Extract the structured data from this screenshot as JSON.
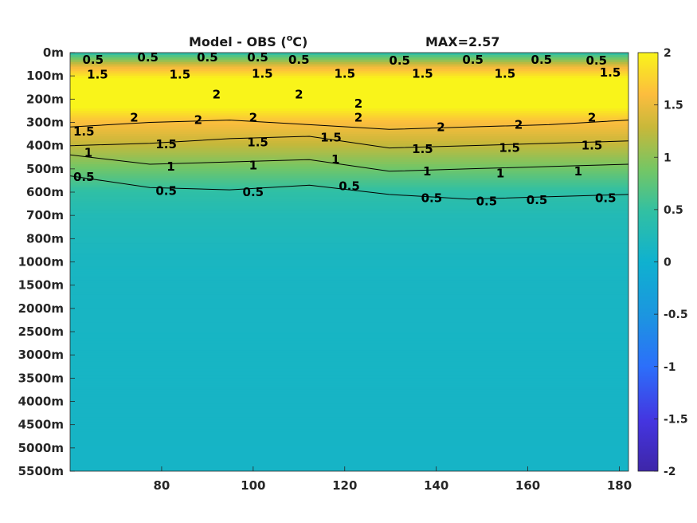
{
  "chart_data": {
    "type": "heatmap",
    "title": "Model - OBS (",
    "title_unit": "o",
    "title_suffix": "C)",
    "max_label": "MAX=2.57",
    "x": {
      "range": [
        60,
        182
      ],
      "ticks": [
        80,
        100,
        120,
        140,
        160,
        180
      ],
      "tick_labels": [
        "80",
        "100",
        "120",
        "140",
        "160",
        "180"
      ]
    },
    "y": {
      "tick_labels": [
        "0m",
        "100m",
        "200m",
        "300m",
        "400m",
        "500m",
        "600m",
        "700m",
        "800m",
        "1000m",
        "1500m",
        "2000m",
        "2500m",
        "3000m",
        "3500m",
        "4000m",
        "4500m",
        "5000m",
        "5500m"
      ]
    },
    "colorbar": {
      "range": [
        -2,
        2
      ],
      "ticks": [
        2,
        1.5,
        1,
        0.5,
        0,
        -0.5,
        -1,
        -1.5,
        -2
      ],
      "tick_labels": [
        "2",
        "1.5",
        "1",
        "0.5",
        "0",
        "-0.5",
        "-1",
        "-1.5",
        "-2"
      ],
      "colors": [
        "#3e26a8",
        "#4435e0",
        "#2c6ffa",
        "#1c95e0",
        "#0fb1cf",
        "#31c0a3",
        "#74c665",
        "#c7b83a",
        "#fcbd3e",
        "#f9f41a"
      ]
    },
    "depth_profile": [
      {
        "level": 0,
        "value": 0.4
      },
      {
        "level": 0.6,
        "value": 1.5
      },
      {
        "level": 1.2,
        "value": 2.1
      },
      {
        "level": 2.2,
        "value": 2.1
      },
      {
        "level": 3,
        "value": 1.6
      },
      {
        "level": 4,
        "value": 1.25
      },
      {
        "level": 5,
        "value": 0.85
      },
      {
        "level": 6,
        "value": 0.45
      },
      {
        "level": 7,
        "value": 0.28
      },
      {
        "level": 9,
        "value": 0.15
      },
      {
        "level": 12,
        "value": 0.12
      },
      {
        "level": 18,
        "value": 0.1
      }
    ],
    "contours": [
      {
        "value": 2,
        "depth_level": [
          3.2,
          3.0,
          2.9,
          3.1,
          3.3,
          3.2,
          3.1,
          2.9
        ]
      },
      {
        "value": 1.5,
        "depth_level": [
          4.0,
          3.9,
          3.7,
          3.6,
          4.1,
          4.0,
          3.9,
          3.8
        ]
      },
      {
        "value": 1,
        "depth_level": [
          4.4,
          4.8,
          4.7,
          4.6,
          5.1,
          5.0,
          4.9,
          4.8
        ]
      },
      {
        "value": 0.5,
        "depth_level": [
          5.3,
          5.8,
          5.9,
          5.7,
          6.1,
          6.3,
          6.2,
          6.1
        ]
      }
    ],
    "contour_labels": [
      {
        "text": "0.5",
        "x": 65,
        "level": 0.3
      },
      {
        "text": "0.5",
        "x": 77,
        "level": 0.2
      },
      {
        "text": "0.5",
        "x": 90,
        "level": 0.2
      },
      {
        "text": "0.5",
        "x": 101,
        "level": 0.2
      },
      {
        "text": "0.5",
        "x": 110,
        "level": 0.3
      },
      {
        "text": "0.5",
        "x": 132,
        "level": 0.35
      },
      {
        "text": "0.5",
        "x": 148,
        "level": 0.3
      },
      {
        "text": "0.5",
        "x": 163,
        "level": 0.3
      },
      {
        "text": "0.5",
        "x": 175,
        "level": 0.35
      },
      {
        "text": "1.5",
        "x": 66,
        "level": 0.95
      },
      {
        "text": "1.5",
        "x": 84,
        "level": 0.95
      },
      {
        "text": "1.5",
        "x": 102,
        "level": 0.9
      },
      {
        "text": "1.5",
        "x": 120,
        "level": 0.9
      },
      {
        "text": "1.5",
        "x": 137,
        "level": 0.9
      },
      {
        "text": "1.5",
        "x": 155,
        "level": 0.9
      },
      {
        "text": "1.5",
        "x": 178,
        "level": 0.85
      },
      {
        "text": "2",
        "x": 92,
        "level": 1.8
      },
      {
        "text": "2",
        "x": 110,
        "level": 1.8
      },
      {
        "text": "2",
        "x": 123,
        "level": 2.2
      },
      {
        "text": "2",
        "x": 74,
        "level": 2.8
      },
      {
        "text": "2",
        "x": 88,
        "level": 2.9
      },
      {
        "text": "2",
        "x": 100,
        "level": 2.8
      },
      {
        "text": "2",
        "x": 123,
        "level": 2.8
      },
      {
        "text": "2",
        "x": 141,
        "level": 3.2
      },
      {
        "text": "2",
        "x": 158,
        "level": 3.1
      },
      {
        "text": "2",
        "x": 174,
        "level": 2.8
      },
      {
        "text": "1.5",
        "x": 63,
        "level": 3.4
      },
      {
        "text": "1.5",
        "x": 81,
        "level": 3.95
      },
      {
        "text": "1.5",
        "x": 101,
        "level": 3.85
      },
      {
        "text": "1.5",
        "x": 117,
        "level": 3.65
      },
      {
        "text": "1.5",
        "x": 137,
        "level": 4.15
      },
      {
        "text": "1.5",
        "x": 156,
        "level": 4.1
      },
      {
        "text": "1.5",
        "x": 174,
        "level": 4.0
      },
      {
        "text": "1",
        "x": 64,
        "level": 4.3
      },
      {
        "text": "1",
        "x": 82,
        "level": 4.9
      },
      {
        "text": "1",
        "x": 100,
        "level": 4.85
      },
      {
        "text": "1",
        "x": 118,
        "level": 4.6
      },
      {
        "text": "1",
        "x": 138,
        "level": 5.1
      },
      {
        "text": "1",
        "x": 154,
        "level": 5.2
      },
      {
        "text": "1",
        "x": 171,
        "level": 5.1
      },
      {
        "text": "0.5",
        "x": 63,
        "level": 5.35
      },
      {
        "text": "0.5",
        "x": 81,
        "level": 5.95
      },
      {
        "text": "0.5",
        "x": 100,
        "level": 6.0
      },
      {
        "text": "0.5",
        "x": 121,
        "level": 5.75
      },
      {
        "text": "0.5",
        "x": 139,
        "level": 6.25
      },
      {
        "text": "0.5",
        "x": 151,
        "level": 6.4
      },
      {
        "text": "0.5",
        "x": 162,
        "level": 6.35
      },
      {
        "text": "0.5",
        "x": 177,
        "level": 6.25
      }
    ]
  }
}
